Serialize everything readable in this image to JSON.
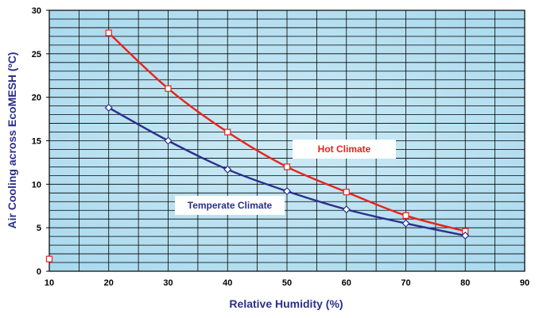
{
  "chart_data": {
    "type": "line",
    "title": "",
    "xlabel": "Relative Humidity (%)",
    "ylabel": "Air Cooling across EcoMESH (ºC)",
    "xlim": [
      10,
      90
    ],
    "ylim": [
      0,
      30
    ],
    "x_ticks": [
      10,
      20,
      30,
      40,
      50,
      60,
      70,
      80,
      90
    ],
    "y_ticks": [
      0,
      5,
      10,
      15,
      20,
      25,
      30
    ],
    "grid": true,
    "series": [
      {
        "name": "Hot Climate",
        "color": "#e8231c",
        "marker": "square",
        "x": [
          20,
          30,
          40,
          50,
          60,
          70,
          80
        ],
        "y": [
          27.4,
          21.0,
          16.0,
          12.0,
          9.1,
          6.4,
          4.6
        ]
      },
      {
        "name": "Temperate Climate",
        "color": "#2b2f8c",
        "marker": "diamond",
        "x": [
          20,
          30,
          40,
          50,
          60,
          70,
          80
        ],
        "y": [
          18.8,
          15.0,
          11.7,
          9.2,
          7.1,
          5.5,
          4.1
        ]
      }
    ],
    "extra_points": [
      {
        "x": 10,
        "y": 1.4,
        "marker": "square",
        "color": "#e8231c"
      }
    ],
    "colors": {
      "background": "#bfe3f1",
      "grid": "#000000",
      "axis_title": "#2b2f8c"
    }
  }
}
